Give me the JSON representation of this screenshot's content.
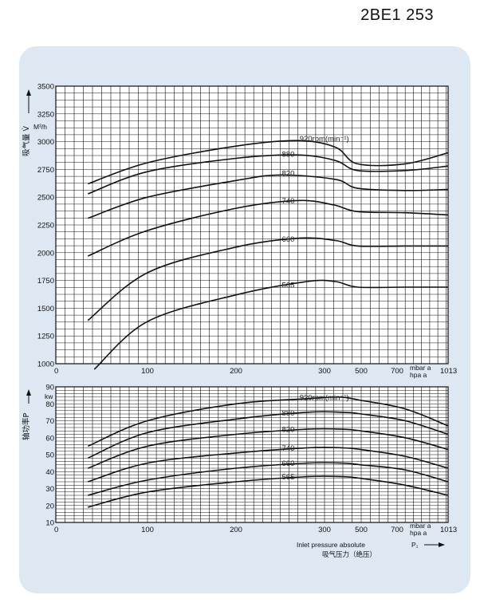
{
  "header": {
    "model": "2BE1 253"
  },
  "chart_data": [
    {
      "type": "line",
      "ylabel": "吸气量 V̇",
      "yunit": "M³/h",
      "ylim": [
        1000,
        3500
      ],
      "yticks": [
        1000,
        1250,
        1500,
        1750,
        2000,
        2250,
        2500,
        2750,
        3000,
        3250,
        3500
      ],
      "xticks": [
        "0",
        "100",
        "200",
        "300",
        "500",
        "700",
        "1013"
      ],
      "xunit_top": "mbar a",
      "xunit_bottom": "hpa a",
      "series": [
        {
          "name": "920rpm(min⁻¹)",
          "label_x": 270,
          "points": [
            [
              35,
              2620
            ],
            [
              100,
              2810
            ],
            [
              200,
              2960
            ],
            [
              270,
              3010
            ],
            [
              360,
              2950
            ],
            [
              480,
              2800
            ],
            [
              750,
              2800
            ],
            [
              1013,
              2900
            ]
          ]
        },
        {
          "name": "880",
          "label_x": 250,
          "points": [
            [
              35,
              2530
            ],
            [
              100,
              2730
            ],
            [
              200,
              2850
            ],
            [
              270,
              2880
            ],
            [
              360,
              2830
            ],
            [
              480,
              2740
            ],
            [
              750,
              2740
            ],
            [
              1013,
              2780
            ]
          ]
        },
        {
          "name": "820",
          "label_x": 250,
          "points": [
            [
              35,
              2310
            ],
            [
              100,
              2500
            ],
            [
              200,
              2650
            ],
            [
              250,
              2700
            ],
            [
              360,
              2660
            ],
            [
              480,
              2580
            ],
            [
              750,
              2560
            ],
            [
              1013,
              2570
            ]
          ]
        },
        {
          "name": "740",
          "label_x": 250,
          "points": [
            [
              35,
              1970
            ],
            [
              100,
              2200
            ],
            [
              200,
              2400
            ],
            [
              270,
              2470
            ],
            [
              350,
              2430
            ],
            [
              480,
              2370
            ],
            [
              750,
              2360
            ],
            [
              1013,
              2340
            ]
          ]
        },
        {
          "name": "660",
          "label_x": 250,
          "points": [
            [
              35,
              1390
            ],
            [
              100,
              1820
            ],
            [
              200,
              2050
            ],
            [
              270,
              2130
            ],
            [
              360,
              2110
            ],
            [
              480,
              2060
            ],
            [
              750,
              2060
            ],
            [
              1013,
              2060
            ]
          ]
        },
        {
          "name": "565",
          "label_x": 250,
          "points": [
            [
              42,
              950
            ],
            [
              100,
              1380
            ],
            [
              200,
              1620
            ],
            [
              280,
              1740
            ],
            [
              360,
              1740
            ],
            [
              480,
              1690
            ],
            [
              750,
              1690
            ],
            [
              1013,
              1690
            ]
          ]
        }
      ]
    },
    {
      "type": "line",
      "ylabel": "轴功率P",
      "yunit": "kw",
      "ylim": [
        10,
        90
      ],
      "yticks": [
        10,
        20,
        30,
        40,
        50,
        60,
        70,
        80,
        90
      ],
      "xticks": [
        "0",
        "100",
        "200",
        "300",
        "500",
        "700",
        "1013"
      ],
      "xunit_top": "mbar a",
      "xunit_bottom": "hpa a",
      "xlabel_en": "Inlet pressure absolute",
      "xlabel_cn": "吸气压力（绝压）",
      "x_symbol": "P₁",
      "series": [
        {
          "name": "920rpm(min⁻¹)",
          "label_x": 270,
          "points": [
            [
              35,
              55
            ],
            [
              100,
              70
            ],
            [
              200,
              80
            ],
            [
              280,
              83
            ],
            [
              380,
              84
            ],
            [
              500,
              82
            ],
            [
              750,
              77
            ],
            [
              1013,
              67
            ]
          ]
        },
        {
          "name": "880",
          "label_x": 250,
          "points": [
            [
              35,
              48
            ],
            [
              100,
              63
            ],
            [
              200,
              71
            ],
            [
              280,
              75
            ],
            [
              400,
              75
            ],
            [
              500,
              74
            ],
            [
              750,
              70
            ],
            [
              1013,
              62
            ]
          ]
        },
        {
          "name": "820",
          "label_x": 250,
          "points": [
            [
              35,
              42
            ],
            [
              100,
              55
            ],
            [
              200,
              62
            ],
            [
              280,
              65
            ],
            [
              400,
              65
            ],
            [
              500,
              64
            ],
            [
              750,
              60
            ],
            [
              1013,
              53
            ]
          ]
        },
        {
          "name": "740",
          "label_x": 250,
          "points": [
            [
              35,
              34
            ],
            [
              100,
              45
            ],
            [
              200,
              51
            ],
            [
              280,
              54
            ],
            [
              400,
              54
            ],
            [
              500,
              53
            ],
            [
              750,
              49
            ],
            [
              1013,
              42
            ]
          ]
        },
        {
          "name": "660",
          "label_x": 250,
          "points": [
            [
              35,
              26
            ],
            [
              100,
              35
            ],
            [
              200,
              42
            ],
            [
              280,
              45
            ],
            [
              400,
              45
            ],
            [
              500,
              44
            ],
            [
              750,
              41
            ],
            [
              1013,
              34
            ]
          ]
        },
        {
          "name": "565",
          "label_x": 250,
          "points": [
            [
              35,
              19
            ],
            [
              100,
              28
            ],
            [
              200,
              34
            ],
            [
              280,
              37
            ],
            [
              400,
              37
            ],
            [
              500,
              36
            ],
            [
              750,
              32
            ],
            [
              1013,
              26
            ]
          ]
        }
      ]
    }
  ]
}
